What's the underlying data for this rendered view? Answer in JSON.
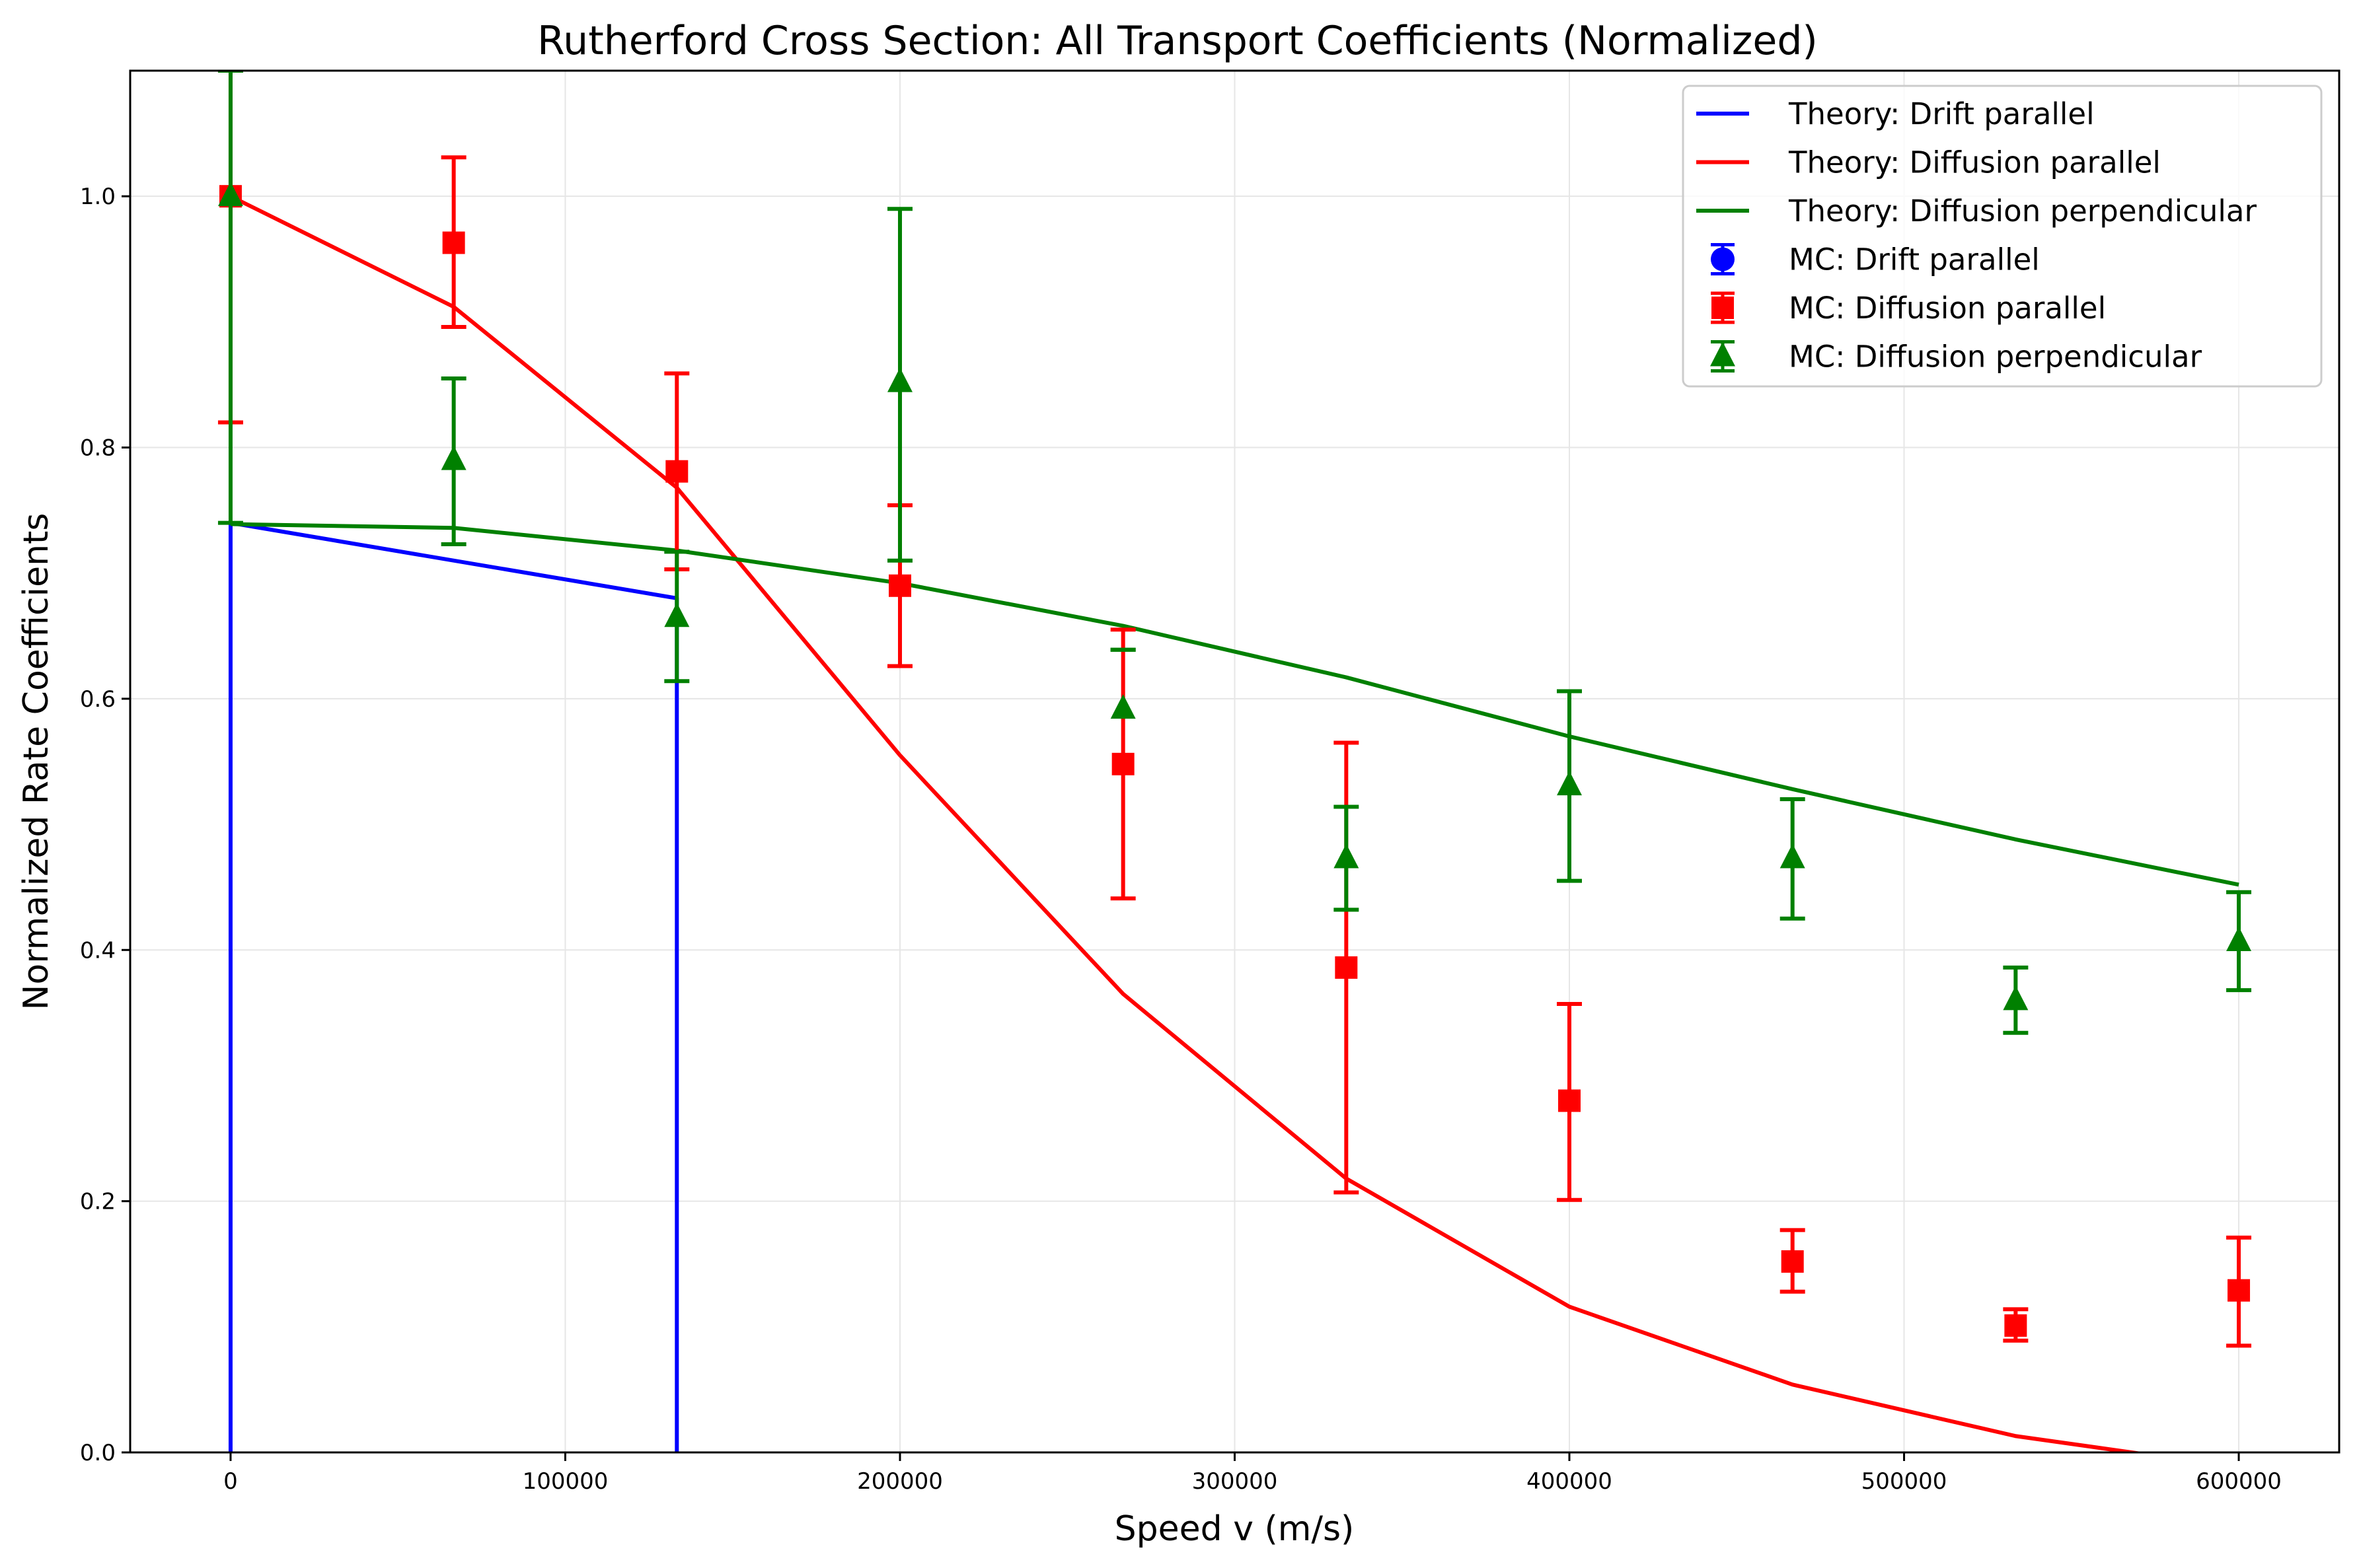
{
  "chart_data": {
    "type": "line",
    "title": "Rutherford Cross Section: All Transport Coefficients (Normalized)",
    "xlabel": "Speed v (m/s)",
    "ylabel": "Normalized Rate Coefficients",
    "xlim": [
      -30000,
      630000
    ],
    "ylim": [
      0.0,
      1.1
    ],
    "x_ticks": [
      0,
      100000,
      200000,
      300000,
      400000,
      500000,
      600000
    ],
    "y_ticks": [
      0.0,
      0.2,
      0.4,
      0.6,
      0.8,
      1.0
    ],
    "x_tick_labels": [
      "0",
      "100000",
      "200000",
      "300000",
      "400000",
      "500000",
      "600000"
    ],
    "y_tick_labels": [
      "0.0",
      "0.2",
      "0.4",
      "0.6",
      "0.8",
      "1.0"
    ],
    "grid": true,
    "legend_position": "top-right",
    "theory": [
      {
        "name": "Theory: Drift parallel",
        "color": "#0000ff",
        "x": [
          0,
          0,
          133333,
          133333
        ],
        "y": [
          0.0,
          0.74,
          0.68,
          0.0
        ]
      },
      {
        "name": "Theory: Diffusion parallel",
        "color": "#ff0000",
        "x": [
          0,
          66667,
          133333,
          200000,
          266667,
          333333,
          400000,
          466667,
          533333,
          600000
        ],
        "y": [
          1.0,
          0.912,
          0.768,
          0.555,
          0.365,
          0.218,
          0.116,
          0.054,
          0.013,
          -0.012
        ]
      },
      {
        "name": "Theory: Diffusion perpendicular",
        "color": "#008000",
        "x": [
          0,
          66667,
          133333,
          200000,
          266667,
          333333,
          400000,
          466667,
          533333,
          600000
        ],
        "y": [
          0.739,
          0.736,
          0.718,
          0.692,
          0.658,
          0.617,
          0.57,
          0.528,
          0.488,
          0.452
        ]
      }
    ],
    "mc": [
      {
        "name": "MC: Drift parallel",
        "color": "#0000ff",
        "marker": "circle",
        "x": [],
        "y": [],
        "yerr_low": [],
        "yerr_high": []
      },
      {
        "name": "MC: Diffusion parallel",
        "color": "#ff0000",
        "marker": "square",
        "x": [
          0,
          66667,
          133333,
          200000,
          266667,
          333333,
          400000,
          466667,
          533333,
          600000
        ],
        "y": [
          1.0,
          0.963,
          0.781,
          0.69,
          0.548,
          0.386,
          0.28,
          0.152,
          0.101,
          0.129
        ],
        "yerr_low": [
          0.82,
          0.896,
          0.703,
          0.626,
          0.441,
          0.207,
          0.201,
          0.128,
          0.089,
          0.085
        ],
        "yerr_high": [
          1.1,
          1.031,
          0.859,
          0.754,
          0.655,
          0.565,
          0.357,
          0.177,
          0.114,
          0.171
        ]
      },
      {
        "name": "MC: Diffusion perpendicular",
        "color": "#008000",
        "marker": "triangle",
        "x": [
          0,
          66667,
          133333,
          200000,
          266667,
          333333,
          400000,
          466667,
          533333,
          600000
        ],
        "y": [
          1.0,
          0.79,
          0.665,
          0.852,
          0.592,
          0.473,
          0.531,
          0.473,
          0.36,
          0.407
        ],
        "yerr_low": [
          0.74,
          0.723,
          0.614,
          0.71,
          0.639,
          0.432,
          0.455,
          0.425,
          0.334,
          0.368
        ],
        "yerr_high": [
          1.1,
          0.855,
          0.717,
          0.99,
          0.639,
          0.514,
          0.606,
          0.52,
          0.386,
          0.446
        ]
      }
    ]
  }
}
